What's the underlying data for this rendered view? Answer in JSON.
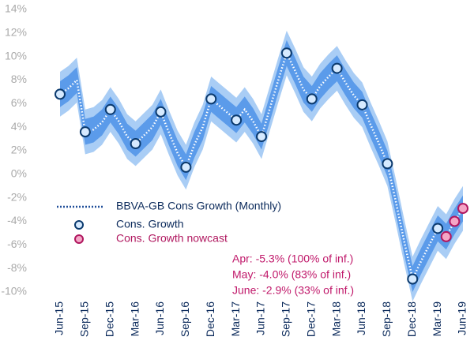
{
  "chart_data": {
    "type": "line",
    "categories": [
      "Jun-15",
      null,
      null,
      "Sep-15",
      null,
      null,
      "Dec-15",
      null,
      null,
      "Mar-16",
      null,
      null,
      "Jun-16",
      null,
      null,
      "Sep-16",
      null,
      null,
      "Dec-16",
      null,
      null,
      "Mar-17",
      null,
      null,
      "Jun-17",
      null,
      null,
      "Sep-17",
      null,
      null,
      "Dec-17",
      null,
      null,
      "Mar-18",
      null,
      null,
      "Jun-18",
      null,
      null,
      "Sep-18",
      null,
      null,
      "Dec-18",
      null,
      null,
      "Mar-19",
      null,
      null,
      "Jun-19"
    ],
    "series": [
      {
        "name": "BBVA-GB Cons Growth (Monthly)",
        "color": "#1f4e99",
        "style": "dotted",
        "values": [
          6.8,
          7.3,
          8.0,
          3.6,
          3.8,
          4.4,
          5.5,
          4.5,
          3.2,
          2.6,
          3.3,
          4.0,
          5.3,
          3.5,
          1.8,
          0.6,
          2.5,
          4.0,
          6.4,
          5.8,
          5.2,
          4.6,
          5.5,
          4.5,
          3.2,
          5.6,
          8.0,
          10.3,
          8.8,
          7.2,
          6.4,
          7.5,
          8.3,
          9.0,
          7.8,
          6.7,
          5.9,
          4.2,
          2.6,
          0.9,
          -2.3,
          -5.7,
          -8.9,
          -7.4,
          -6.0,
          -4.6,
          -5.3,
          -4.0,
          -2.9
        ]
      },
      {
        "name": "Cons. Growth",
        "color": "#0b3a6e",
        "fill": "#d6eaff",
        "style": "marker",
        "values": [
          6.8,
          null,
          null,
          3.6,
          null,
          null,
          5.5,
          null,
          null,
          2.6,
          null,
          null,
          5.3,
          null,
          null,
          0.6,
          null,
          null,
          6.4,
          null,
          null,
          4.6,
          null,
          null,
          3.2,
          null,
          null,
          10.3,
          null,
          null,
          6.4,
          null,
          null,
          9.0,
          null,
          null,
          5.9,
          null,
          null,
          0.9,
          null,
          null,
          -8.9,
          null,
          null,
          -4.6,
          null,
          null,
          null
        ]
      },
      {
        "name": "Cons. Growth nowcast",
        "color": "#b0175f",
        "fill": "#f4a6c6",
        "style": "marker",
        "values": [
          null,
          null,
          null,
          null,
          null,
          null,
          null,
          null,
          null,
          null,
          null,
          null,
          null,
          null,
          null,
          null,
          null,
          null,
          null,
          null,
          null,
          null,
          null,
          null,
          null,
          null,
          null,
          null,
          null,
          null,
          null,
          null,
          null,
          null,
          null,
          null,
          null,
          null,
          null,
          null,
          null,
          null,
          null,
          null,
          null,
          null,
          -5.3,
          -4.0,
          -2.9
        ]
      }
    ],
    "bands": [
      {
        "color": "#a9cdf5",
        "halfwidth": 1.9
      },
      {
        "color": "#5b9bea",
        "halfwidth": 1.1
      }
    ],
    "ylim": [
      -10,
      14
    ],
    "yticks": [
      {
        "value": -10,
        "label": "-10%"
      },
      {
        "value": -8,
        "label": "-8%"
      },
      {
        "value": -6,
        "label": "-6%"
      },
      {
        "value": -4,
        "label": "-4%"
      },
      {
        "value": -2,
        "label": "-2%"
      },
      {
        "value": 0,
        "label": "0%"
      },
      {
        "value": 2,
        "label": "2%"
      },
      {
        "value": 4,
        "label": "4%"
      },
      {
        "value": 6,
        "label": "6%"
      },
      {
        "value": 8,
        "label": "8%"
      },
      {
        "value": 10,
        "label": "10%"
      },
      {
        "value": 12,
        "label": "12%"
      },
      {
        "value": 14,
        "label": "14%"
      }
    ],
    "annotations": [
      "Apr: -5.3% (100% of inf.)",
      "May: -4.0% (83% of inf.)",
      "June: -2.9% (33% of inf.)"
    ],
    "annotation_color": "#c0186a",
    "grid": false
  }
}
